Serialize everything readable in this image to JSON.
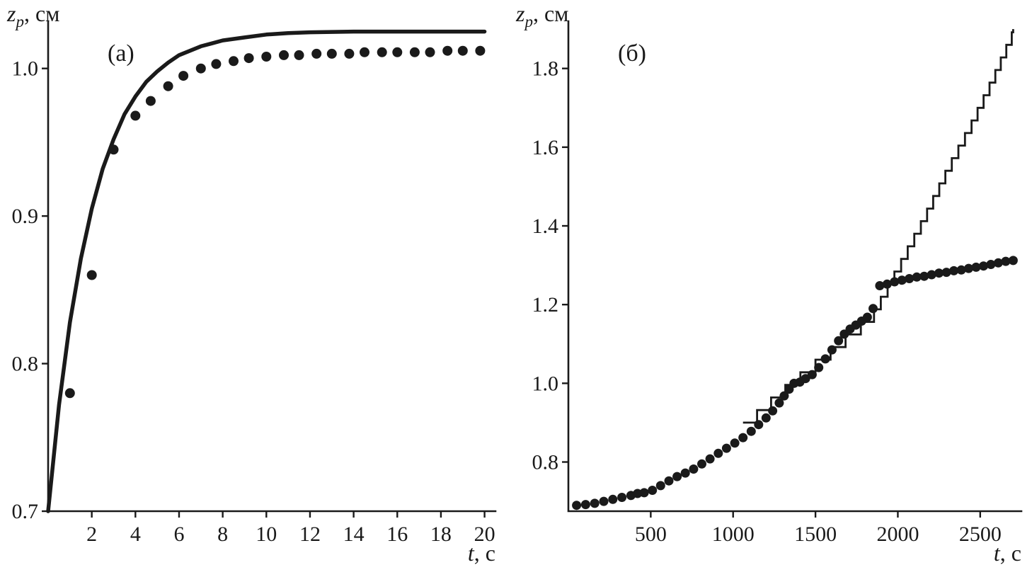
{
  "figure": {
    "background": "#ffffff",
    "ink": "#1a1a1a"
  },
  "chart_data": [
    {
      "id": "a",
      "type": "line+scatter",
      "panel_label": "(а)",
      "x_label": {
        "variable": "t",
        "unit": ", с"
      },
      "y_label": {
        "variable": "z",
        "subscript": "p",
        "unit": ", см"
      },
      "xlim": [
        0,
        20.5
      ],
      "ylim": [
        0.7,
        1.032
      ],
      "x_ticks": [
        2,
        4,
        6,
        8,
        10,
        12,
        14,
        16,
        18,
        20
      ],
      "x_tick_labels": [
        "2",
        "4",
        "6",
        "8",
        "10",
        "12",
        "14",
        "16",
        "18",
        "20"
      ],
      "y_ticks": [
        0.7,
        0.8,
        0.9,
        1.0
      ],
      "y_tick_labels": [
        "0.7",
        "0.8",
        "0.9",
        "1.0"
      ],
      "grid": false,
      "series": [
        {
          "name": "model-curve",
          "kind": "line",
          "width": 5.5,
          "points": [
            [
              0,
              0.7
            ],
            [
              0.5,
              0.772
            ],
            [
              1,
              0.828
            ],
            [
              1.5,
              0.871
            ],
            [
              2,
              0.905
            ],
            [
              2.5,
              0.932
            ],
            [
              3,
              0.952
            ],
            [
              3.5,
              0.969
            ],
            [
              4,
              0.981
            ],
            [
              4.5,
              0.991
            ],
            [
              5,
              0.998
            ],
            [
              5.5,
              1.004
            ],
            [
              6,
              1.009
            ],
            [
              6.5,
              1.012
            ],
            [
              7,
              1.015
            ],
            [
              7.5,
              1.017
            ],
            [
              8,
              1.019
            ],
            [
              9,
              1.021
            ],
            [
              10,
              1.023
            ],
            [
              11,
              1.024
            ],
            [
              12,
              1.0245
            ],
            [
              14,
              1.025
            ],
            [
              16,
              1.025
            ],
            [
              18,
              1.025
            ],
            [
              20,
              1.025
            ]
          ]
        },
        {
          "name": "experiment-dots",
          "kind": "scatter",
          "radius": 7,
          "points": [
            [
              1,
              0.78
            ],
            [
              2,
              0.86
            ],
            [
              3,
              0.945
            ],
            [
              4,
              0.968
            ],
            [
              4.7,
              0.978
            ],
            [
              5.5,
              0.988
            ],
            [
              6.2,
              0.995
            ],
            [
              7,
              1.0
            ],
            [
              7.7,
              1.003
            ],
            [
              8.5,
              1.005
            ],
            [
              9.2,
              1.007
            ],
            [
              10,
              1.008
            ],
            [
              10.8,
              1.009
            ],
            [
              11.5,
              1.009
            ],
            [
              12.3,
              1.01
            ],
            [
              13,
              1.01
            ],
            [
              13.8,
              1.01
            ],
            [
              14.5,
              1.011
            ],
            [
              15.3,
              1.011
            ],
            [
              16,
              1.011
            ],
            [
              16.8,
              1.011
            ],
            [
              17.5,
              1.011
            ],
            [
              18.3,
              1.012
            ],
            [
              19,
              1.012
            ],
            [
              19.8,
              1.012
            ]
          ]
        }
      ]
    },
    {
      "id": "b",
      "type": "line+scatter",
      "panel_label": "(б)",
      "x_label": {
        "variable": "t",
        "unit": ", с"
      },
      "y_label": {
        "variable": "z",
        "subscript": "p",
        "unit": ", см"
      },
      "xlim": [
        0,
        2750
      ],
      "ylim": [
        0.675,
        1.92
      ],
      "x_ticks": [
        500,
        1000,
        1500,
        2000,
        2500
      ],
      "x_tick_labels": [
        "500",
        "1000",
        "1500",
        "2000",
        "2500"
      ],
      "y_ticks": [
        0.8,
        1.0,
        1.2,
        1.4,
        1.6,
        1.8
      ],
      "y_tick_labels": [
        "0.8",
        "1.0",
        "1.2",
        "1.4",
        "1.6",
        "1.8"
      ],
      "grid": false,
      "series": [
        {
          "name": "model-staircase",
          "kind": "staircase",
          "width": 2.8,
          "step_height": 0.032,
          "curve": [
            [
              1060,
              0.9
            ],
            [
              1300,
              0.99
            ],
            [
              1500,
              1.06
            ],
            [
              1700,
              1.13
            ],
            [
              1845,
              1.18
            ],
            [
              2000,
              1.3
            ],
            [
              2150,
              1.42
            ],
            [
              2300,
              1.55
            ],
            [
              2450,
              1.67
            ],
            [
              2575,
              1.78
            ],
            [
              2700,
              1.9
            ]
          ]
        },
        {
          "name": "experiment-dots",
          "kind": "scatter",
          "radius": 6.5,
          "points": [
            [
              50,
              0.69
            ],
            [
              105,
              0.692
            ],
            [
              160,
              0.695
            ],
            [
              215,
              0.7
            ],
            [
              270,
              0.705
            ],
            [
              325,
              0.71
            ],
            [
              380,
              0.715
            ],
            [
              420,
              0.72
            ],
            [
              460,
              0.722
            ],
            [
              510,
              0.728
            ],
            [
              560,
              0.74
            ],
            [
              610,
              0.752
            ],
            [
              660,
              0.763
            ],
            [
              710,
              0.772
            ],
            [
              760,
              0.782
            ],
            [
              810,
              0.795
            ],
            [
              860,
              0.808
            ],
            [
              910,
              0.822
            ],
            [
              960,
              0.835
            ],
            [
              1010,
              0.848
            ],
            [
              1060,
              0.862
            ],
            [
              1110,
              0.878
            ],
            [
              1155,
              0.895
            ],
            [
              1200,
              0.912
            ],
            [
              1240,
              0.93
            ],
            [
              1280,
              0.95
            ],
            [
              1310,
              0.968
            ],
            [
              1340,
              0.985
            ],
            [
              1370,
              1.0
            ],
            [
              1405,
              1.003
            ],
            [
              1440,
              1.012
            ],
            [
              1480,
              1.022
            ],
            [
              1520,
              1.04
            ],
            [
              1560,
              1.062
            ],
            [
              1600,
              1.085
            ],
            [
              1640,
              1.108
            ],
            [
              1675,
              1.125
            ],
            [
              1710,
              1.138
            ],
            [
              1745,
              1.148
            ],
            [
              1780,
              1.158
            ],
            [
              1815,
              1.168
            ],
            [
              1850,
              1.19
            ],
            [
              1890,
              1.248
            ],
            [
              1935,
              1.252
            ],
            [
              1980,
              1.258
            ],
            [
              2025,
              1.262
            ],
            [
              2070,
              1.266
            ],
            [
              2115,
              1.27
            ],
            [
              2160,
              1.272
            ],
            [
              2205,
              1.276
            ],
            [
              2250,
              1.28
            ],
            [
              2295,
              1.282
            ],
            [
              2340,
              1.286
            ],
            [
              2385,
              1.288
            ],
            [
              2430,
              1.292
            ],
            [
              2475,
              1.295
            ],
            [
              2520,
              1.298
            ],
            [
              2565,
              1.302
            ],
            [
              2610,
              1.306
            ],
            [
              2655,
              1.31
            ],
            [
              2700,
              1.312
            ]
          ]
        }
      ]
    }
  ]
}
